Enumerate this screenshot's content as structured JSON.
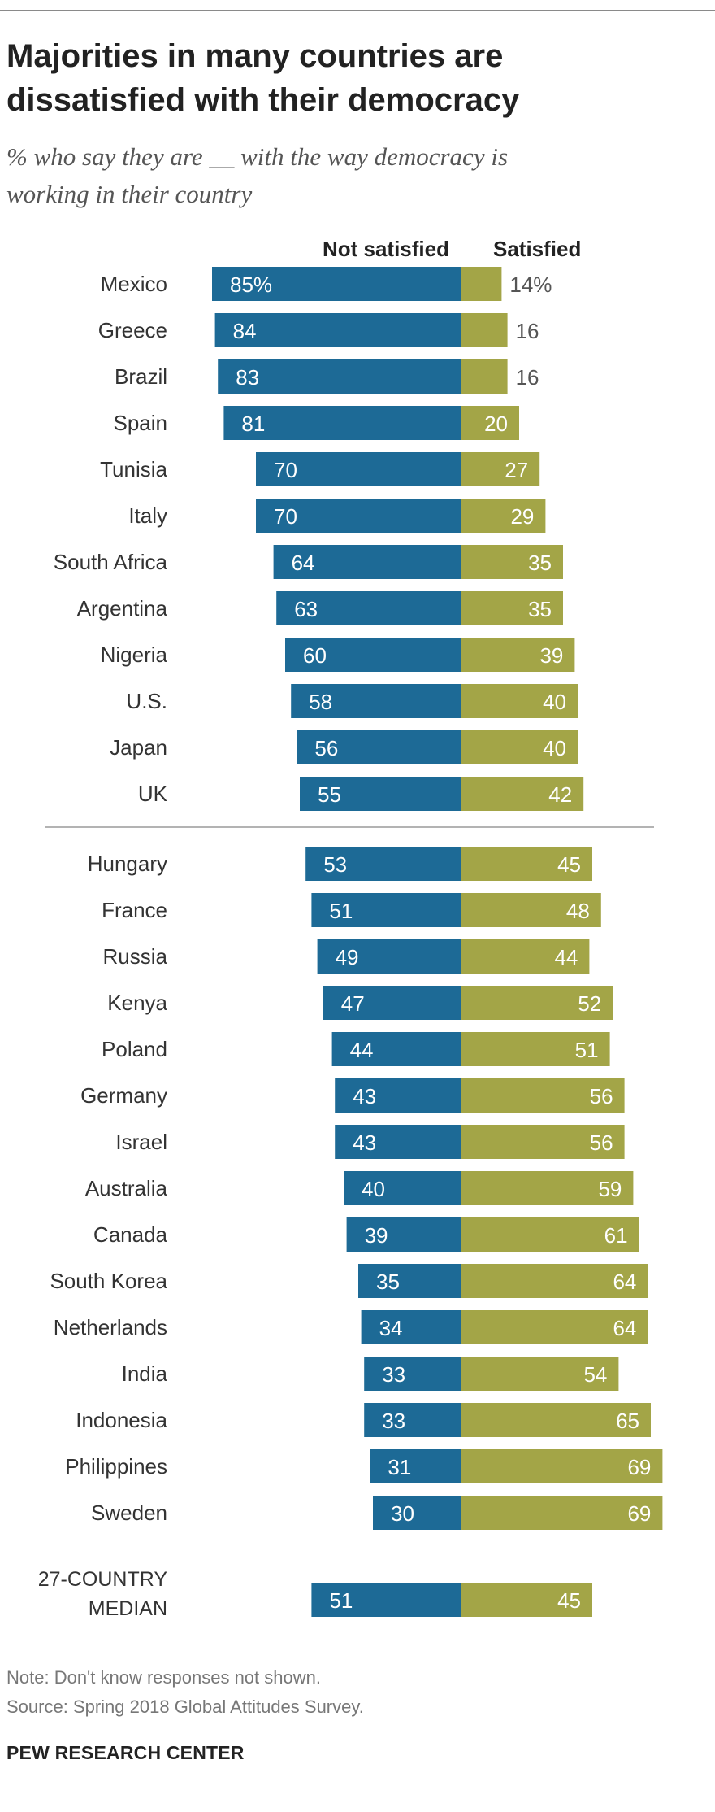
{
  "header": {
    "title_line1": "Majorities in many countries are",
    "title_line2": "dissatisfied with their democracy",
    "subtitle_line1": "% who say they are __ with the way democracy is",
    "subtitle_line2": "working in their country"
  },
  "chart_data": {
    "type": "bar",
    "orientation": "horizontal-diverging",
    "title": "Majorities in many countries are dissatisfied with their democracy",
    "subtitle": "% who say they are __ with the way democracy is working in their country",
    "series": [
      {
        "name": "Not satisfied",
        "color": "#1d6a96"
      },
      {
        "name": "Satisfied",
        "color": "#a3a547"
      }
    ],
    "groups": [
      {
        "rows": [
          {
            "label": "Mexico",
            "not_satisfied": 85,
            "satisfied": 14,
            "ns_text": "85%",
            "s_text": "14%"
          },
          {
            "label": "Greece",
            "not_satisfied": 84,
            "satisfied": 16,
            "ns_text": "84",
            "s_text": "16"
          },
          {
            "label": "Brazil",
            "not_satisfied": 83,
            "satisfied": 16,
            "ns_text": "83",
            "s_text": "16"
          },
          {
            "label": "Spain",
            "not_satisfied": 81,
            "satisfied": 20,
            "ns_text": "81",
            "s_text": "20"
          },
          {
            "label": "Tunisia",
            "not_satisfied": 70,
            "satisfied": 27,
            "ns_text": "70",
            "s_text": "27"
          },
          {
            "label": "Italy",
            "not_satisfied": 70,
            "satisfied": 29,
            "ns_text": "70",
            "s_text": "29"
          },
          {
            "label": "South Africa",
            "not_satisfied": 64,
            "satisfied": 35,
            "ns_text": "64",
            "s_text": "35"
          },
          {
            "label": "Argentina",
            "not_satisfied": 63,
            "satisfied": 35,
            "ns_text": "63",
            "s_text": "35"
          },
          {
            "label": "Nigeria",
            "not_satisfied": 60,
            "satisfied": 39,
            "ns_text": "60",
            "s_text": "39"
          },
          {
            "label": "U.S.",
            "not_satisfied": 58,
            "satisfied": 40,
            "ns_text": "58",
            "s_text": "40"
          },
          {
            "label": "Japan",
            "not_satisfied": 56,
            "satisfied": 40,
            "ns_text": "56",
            "s_text": "40"
          },
          {
            "label": "UK",
            "not_satisfied": 55,
            "satisfied": 42,
            "ns_text": "55",
            "s_text": "42"
          }
        ]
      },
      {
        "rows": [
          {
            "label": "Hungary",
            "not_satisfied": 53,
            "satisfied": 45,
            "ns_text": "53",
            "s_text": "45"
          },
          {
            "label": "France",
            "not_satisfied": 51,
            "satisfied": 48,
            "ns_text": "51",
            "s_text": "48"
          },
          {
            "label": "Russia",
            "not_satisfied": 49,
            "satisfied": 44,
            "ns_text": "49",
            "s_text": "44"
          },
          {
            "label": "Kenya",
            "not_satisfied": 47,
            "satisfied": 52,
            "ns_text": "47",
            "s_text": "52"
          },
          {
            "label": "Poland",
            "not_satisfied": 44,
            "satisfied": 51,
            "ns_text": "44",
            "s_text": "51"
          },
          {
            "label": "Germany",
            "not_satisfied": 43,
            "satisfied": 56,
            "ns_text": "43",
            "s_text": "56"
          },
          {
            "label": "Israel",
            "not_satisfied": 43,
            "satisfied": 56,
            "ns_text": "43",
            "s_text": "56"
          },
          {
            "label": "Australia",
            "not_satisfied": 40,
            "satisfied": 59,
            "ns_text": "40",
            "s_text": "59"
          },
          {
            "label": "Canada",
            "not_satisfied": 39,
            "satisfied": 61,
            "ns_text": "39",
            "s_text": "61"
          },
          {
            "label": "South Korea",
            "not_satisfied": 35,
            "satisfied": 64,
            "ns_text": "35",
            "s_text": "64"
          },
          {
            "label": "Netherlands",
            "not_satisfied": 34,
            "satisfied": 64,
            "ns_text": "34",
            "s_text": "64"
          },
          {
            "label": "India",
            "not_satisfied": 33,
            "satisfied": 54,
            "ns_text": "33",
            "s_text": "54"
          },
          {
            "label": "Indonesia",
            "not_satisfied": 33,
            "satisfied": 65,
            "ns_text": "33",
            "s_text": "65"
          },
          {
            "label": "Philippines",
            "not_satisfied": 31,
            "satisfied": 69,
            "ns_text": "31",
            "s_text": "69"
          },
          {
            "label": "Sweden",
            "not_satisfied": 30,
            "satisfied": 69,
            "ns_text": "30",
            "s_text": "69"
          }
        ]
      }
    ],
    "median": {
      "label_line1": "27-COUNTRY",
      "label_line2": "MEDIAN",
      "not_satisfied": 51,
      "satisfied": 45,
      "ns_text": "51",
      "s_text": "45"
    },
    "xlim": [
      0,
      100
    ],
    "grid": false,
    "legend": "top"
  },
  "footer": {
    "note": "Note: Don't know responses not shown.",
    "source": "Source: Spring 2018 Global Attitudes Survey.",
    "brand": "PEW RESEARCH CENTER"
  }
}
